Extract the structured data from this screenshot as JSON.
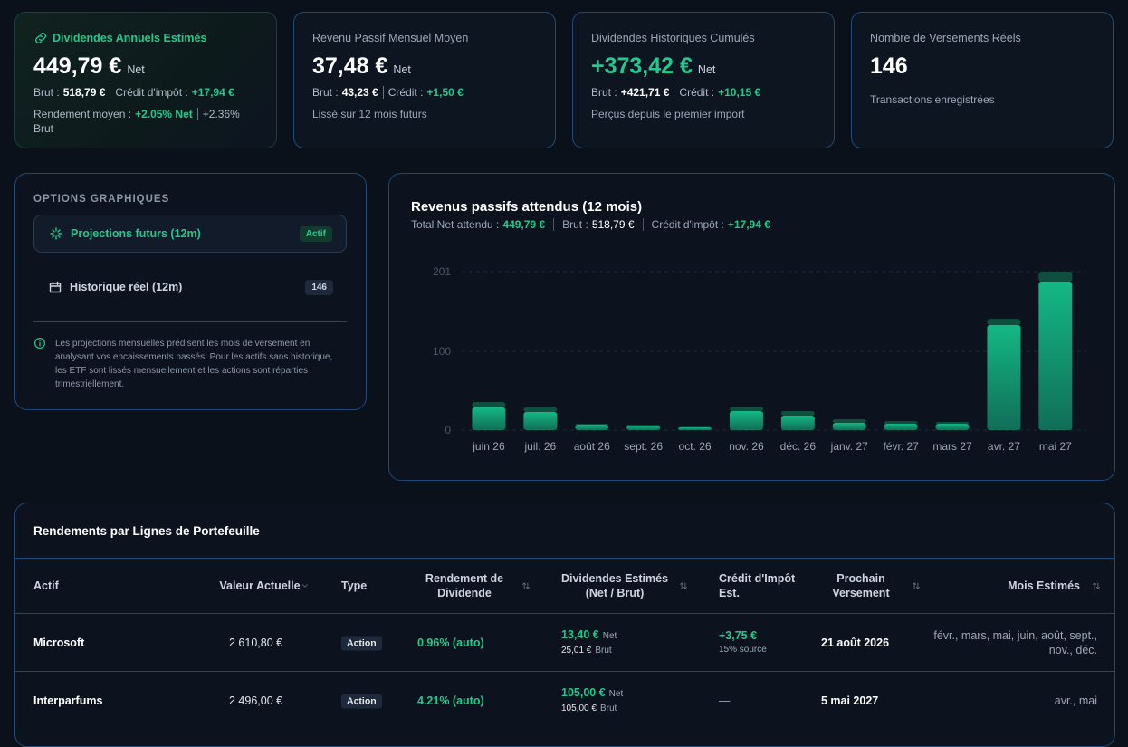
{
  "cards": [
    {
      "title": "Dividendes Annuels Estimés",
      "value": "449,79 €",
      "unit": "Net",
      "brut_label": "Brut :",
      "brut": "518,79 €",
      "credit_label": "Crédit d'impôt :",
      "credit": "+17,94 €",
      "yield_label": "Rendement moyen :",
      "yield_net": "+2.05% Net",
      "yield_brut": "+2.36% Brut"
    },
    {
      "title": "Revenu Passif Mensuel Moyen",
      "value": "37,48 €",
      "unit": "Net",
      "brut_label": "Brut :",
      "brut": "43,23 €",
      "credit_label": "Crédit :",
      "credit": "+1,50 €",
      "note": "Lissé sur 12 mois futurs"
    },
    {
      "title": "Dividendes Historiques Cumulés",
      "value": "+373,42 €",
      "unit": "Net",
      "brut_label": "Brut :",
      "brut": "+421,71 €",
      "credit_label": "Crédit :",
      "credit": "+10,15 €",
      "note": "Perçus depuis le premier import"
    },
    {
      "title": "Nombre de Versements Réels",
      "value": "146",
      "note": "Transactions enregistrées"
    }
  ],
  "options": {
    "title": "OPTIONS GRAPHIQUES",
    "items": [
      {
        "label": "Projections futurs (12m)",
        "badge": "Actif"
      },
      {
        "label": "Historique réel (12m)",
        "badge": "146"
      }
    ],
    "info": "Les projections mensuelles prédisent les mois de versement en analysant vos encaissements passés. Pour les actifs sans historique, les ETF sont lissés mensuellement et les actions sont réparties trimestriellement."
  },
  "chart_data": {
    "type": "bar",
    "stacked": true,
    "title": "Revenus passifs attendus (12 mois)",
    "summary": {
      "net_label": "Total Net attendu :",
      "net": "449,79 €",
      "brut_label": "Brut :",
      "brut": "518,79 €",
      "credit_label": "Crédit d'impôt :",
      "credit": "+17,94 €"
    },
    "categories": [
      "juin 26",
      "juil. 26",
      "août 26",
      "sept. 26",
      "oct. 26",
      "nov. 26",
      "déc. 26",
      "janv. 27",
      "févr. 27",
      "mars 27",
      "avr. 27",
      "mai 27"
    ],
    "series": [
      {
        "color": "#14b885",
        "values": [
          28.7,
          23,
          6.9,
          5.7,
          3.4,
          24.1,
          18.4,
          9.2,
          8,
          8,
          133.2,
          188.4
        ]
      },
      {
        "color": "#0f4f3d",
        "values": [
          6.9,
          5.7,
          1.1,
          1.1,
          0.8,
          5.8,
          5.7,
          4.6,
          3.4,
          2.3,
          8,
          12.6
        ]
      }
    ],
    "ylim": [
      0,
      201
    ],
    "yticks": [
      0,
      100,
      201
    ],
    "grid": true
  },
  "table": {
    "title": "Rendements par Lignes de Portefeuille",
    "columns": [
      "Actif",
      "Valeur Actuelle",
      "Type",
      "Rendement de Dividende",
      "Dividendes Estimés (Net / Brut)",
      "Crédit d'Impôt Est.",
      "Prochain Versement",
      "Mois Estimés"
    ],
    "rows": [
      {
        "actif": "Microsoft",
        "valeur": "2 610,80 €",
        "type": "Action",
        "rendement": "0.96% (auto)",
        "div_net": "13,40 €",
        "div_net_unit": "Net",
        "div_brut": "25,01 €",
        "div_brut_unit": "Brut",
        "credit": "+3,75 €",
        "credit_note": "15% source",
        "prochain": "21 août 2026",
        "mois": "févr., mars, mai, juin, août, sept., nov., déc."
      },
      {
        "actif": "Interparfums",
        "valeur": "2 496,00 €",
        "type": "Action",
        "rendement": "4.21% (auto)",
        "div_net": "105,00 €",
        "div_net_unit": "Net",
        "div_brut": "105,00 €",
        "div_brut_unit": "Brut",
        "credit": "—",
        "prochain": "5 mai 2027",
        "mois": "avr., mai"
      }
    ]
  }
}
